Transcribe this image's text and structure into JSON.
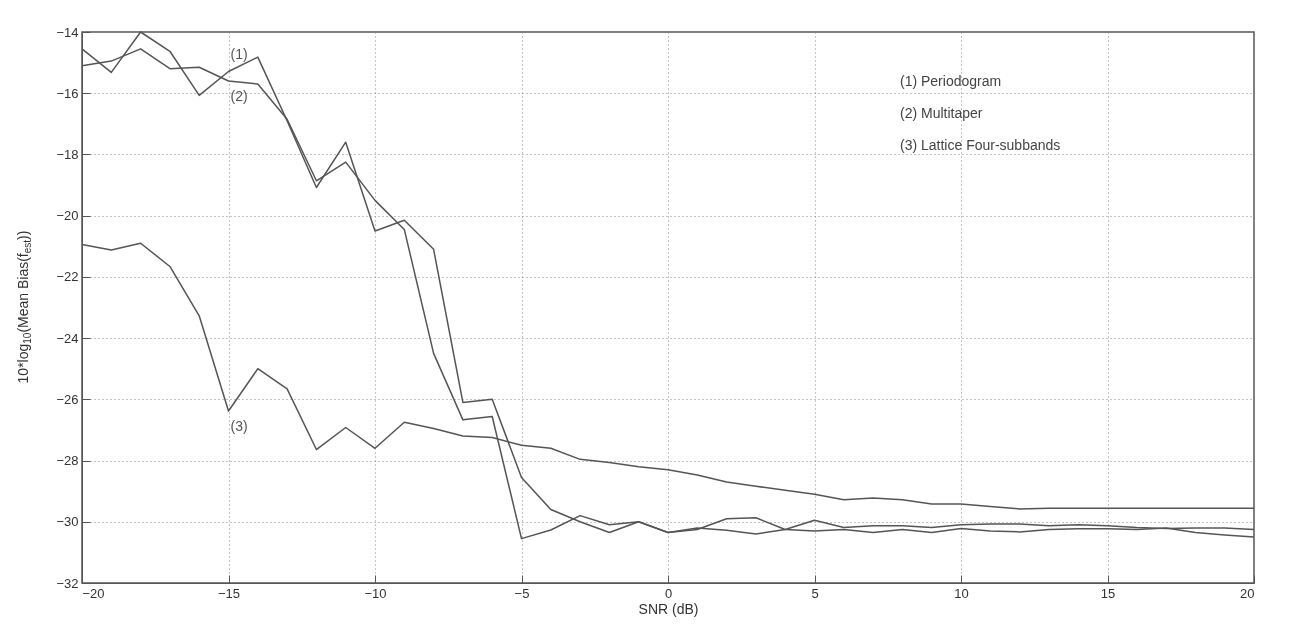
{
  "chart_data": {
    "type": "line",
    "xlabel": "SNR (dB)",
    "ylabel": "10*log$_{10}$(Mean Bias(f$_{est}$))",
    "x": [
      -20,
      -19,
      -18,
      -17,
      -16,
      -15,
      -14,
      -13,
      -12,
      -11,
      -10,
      -9,
      -8,
      -7,
      -6,
      -5,
      -4,
      -3,
      -2,
      -1,
      0,
      1,
      2,
      3,
      4,
      5,
      6,
      7,
      8,
      9,
      10,
      11,
      12,
      13,
      14,
      15,
      16,
      17,
      18,
      19,
      20
    ],
    "series": [
      {
        "name": "(1)",
        "color": "#555555",
        "values": [
          -14.55,
          -15.32,
          -14.0,
          -14.63,
          -16.07,
          -15.29,
          -14.82,
          -16.9,
          -19.08,
          -17.6,
          -20.5,
          -20.15,
          -21.1,
          -26.1,
          -26.0,
          -28.55,
          -29.6,
          -30.0,
          -30.35,
          -30.0,
          -30.35,
          -30.2,
          -30.28,
          -30.4,
          -30.25,
          -29.95,
          -30.19,
          -30.13,
          -30.13,
          -30.19,
          -30.1,
          -30.07,
          -30.07,
          -30.13,
          -30.1,
          -30.13,
          -30.19,
          -30.22,
          -30.2,
          -30.2,
          -30.25
        ]
      },
      {
        "name": "(2)",
        "color": "#555555",
        "values": [
          -15.1,
          -14.95,
          -14.55,
          -15.2,
          -15.15,
          -15.6,
          -15.7,
          -16.85,
          -18.86,
          -18.25,
          -19.5,
          -20.45,
          -24.5,
          -26.67,
          -26.56,
          -30.55,
          -30.27,
          -29.8,
          -30.1,
          -30.0,
          -30.35,
          -30.25,
          -29.9,
          -29.87,
          -30.25,
          -30.3,
          -30.25,
          -30.35,
          -30.25,
          -30.35,
          -30.22,
          -30.3,
          -30.33,
          -30.25,
          -30.23,
          -30.23,
          -30.25,
          -30.2,
          -30.35,
          -30.43,
          -30.5
        ]
      },
      {
        "name": "(3)",
        "color": "#555555",
        "values": [
          -20.94,
          -21.12,
          -20.9,
          -21.66,
          -23.27,
          -26.38,
          -25.0,
          -25.66,
          -27.64,
          -26.92,
          -27.6,
          -26.75,
          -26.95,
          -27.2,
          -27.25,
          -27.5,
          -27.6,
          -27.96,
          -28.06,
          -28.2,
          -28.3,
          -28.47,
          -28.7,
          -28.84,
          -28.97,
          -29.1,
          -29.28,
          -29.22,
          -29.28,
          -29.42,
          -29.42,
          -29.5,
          -29.58,
          -29.56,
          -29.56,
          -29.56,
          -29.56,
          -29.56,
          -29.56,
          -29.56,
          -29.56
        ]
      }
    ],
    "annotations": [
      "(1) Periodogram",
      "(2) Multitaper",
      "(3) Lattice Four-subbands"
    ],
    "xlim": [
      -20,
      20
    ],
    "xticks": [
      -20,
      -15,
      -10,
      -5,
      0,
      5,
      10,
      15,
      20
    ],
    "ylim": [
      -32,
      -14
    ],
    "yticks": [
      -32,
      -30,
      -28,
      -26,
      -24,
      -22,
      -20,
      -18,
      -16,
      -14
    ],
    "grid": true,
    "marker": "none",
    "line_style": "solid"
  }
}
